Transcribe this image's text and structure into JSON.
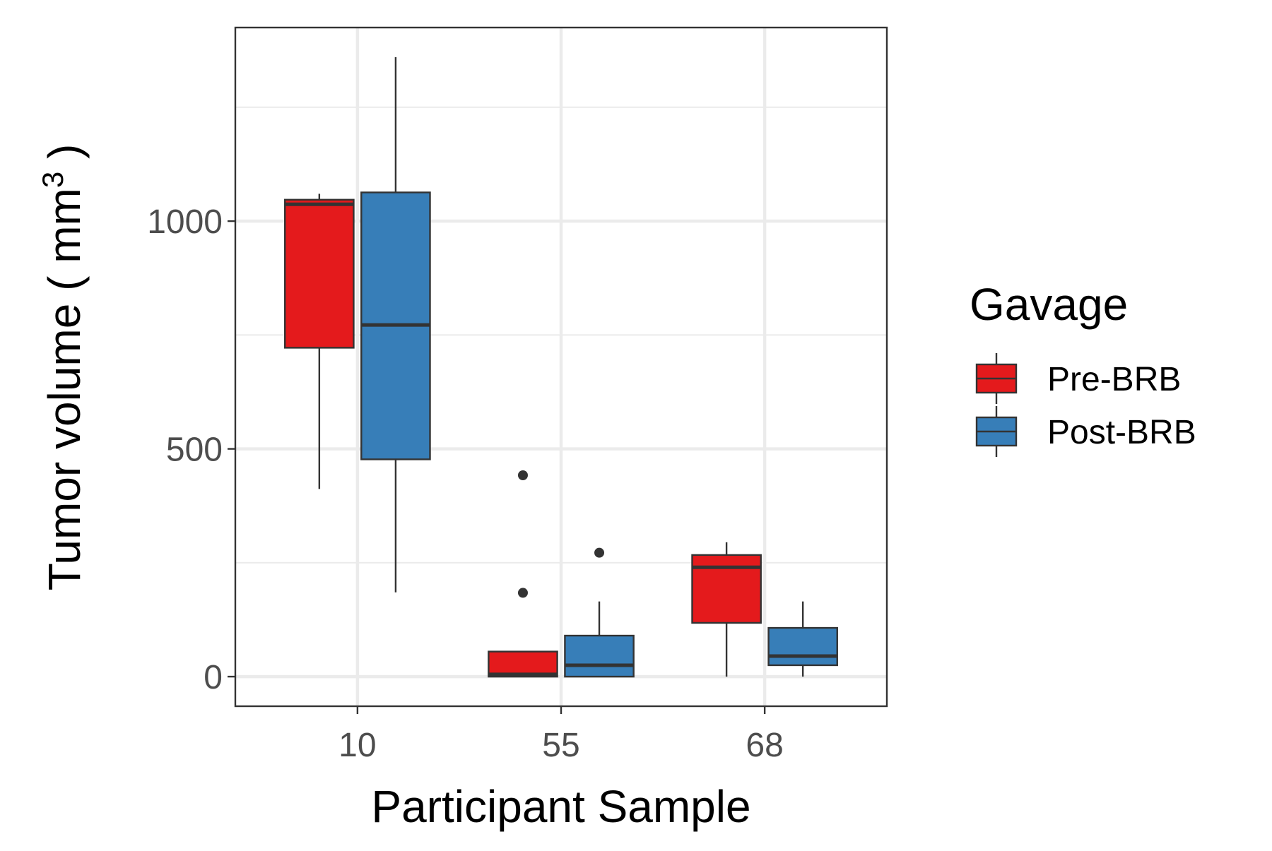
{
  "chart_data": {
    "type": "boxplot",
    "title": "",
    "xlabel": "Participant Sample",
    "ylabel": "Tumor volume ( mm",
    "ylabel_superscript": "3",
    "ylabel_suffix": " )",
    "categories": [
      "10",
      "55",
      "68"
    ],
    "ylim": [
      -65,
      1425
    ],
    "y_ticks": [
      0,
      500,
      1000
    ],
    "y_minor_ticks": [
      250,
      750,
      1250
    ],
    "grid": true,
    "legend": {
      "title": "Gavage",
      "position": "right"
    },
    "series": [
      {
        "name": "Pre-BRB",
        "color": "#e41a1c",
        "boxes": [
          {
            "category": "10",
            "min": 412,
            "q1": 722,
            "median": 1037,
            "q3": 1047,
            "max": 1060,
            "outliers": []
          },
          {
            "category": "55",
            "min": 0,
            "q1": 0,
            "median": 5,
            "q3": 55,
            "max": 55,
            "outliers": [
              184,
              442
            ]
          },
          {
            "category": "68",
            "min": 0,
            "q1": 118,
            "median": 240,
            "q3": 267,
            "max": 295,
            "outliers": []
          }
        ]
      },
      {
        "name": "Post-BRB",
        "color": "#377eb8",
        "boxes": [
          {
            "category": "10",
            "min": 185,
            "q1": 477,
            "median": 772,
            "q3": 1063,
            "max": 1360,
            "outliers": []
          },
          {
            "category": "55",
            "min": 0,
            "q1": 0,
            "median": 25,
            "q3": 90,
            "max": 165,
            "outliers": [
              272
            ]
          },
          {
            "category": "68",
            "min": 0,
            "q1": 25,
            "median": 45,
            "q3": 107,
            "max": 165,
            "outliers": []
          }
        ]
      }
    ]
  }
}
